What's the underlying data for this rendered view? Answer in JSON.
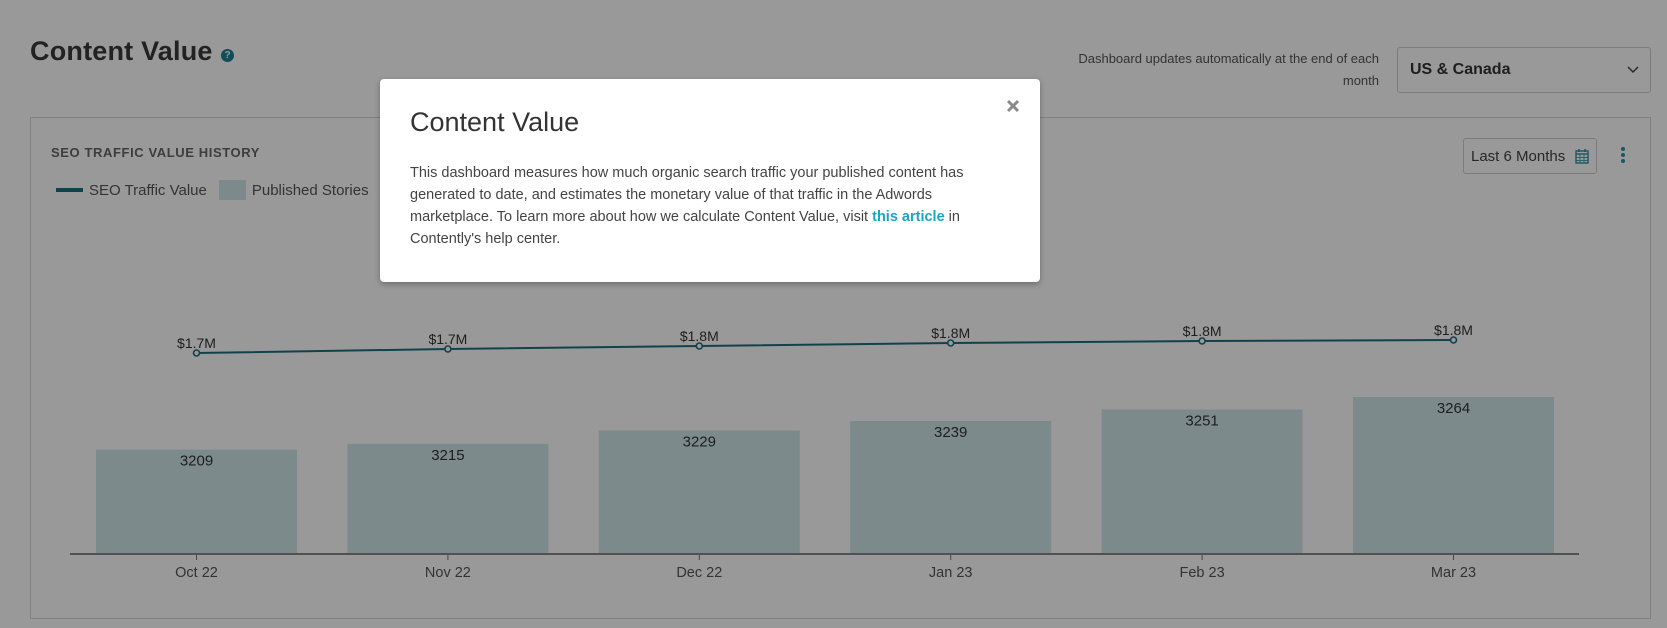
{
  "header": {
    "title": "Content Value",
    "help_icon": "question-circle-icon",
    "update_note": "Dashboard updates automatically at the end of each month",
    "region_select": {
      "value": "US & Canada",
      "icon": "chevron-down-icon"
    }
  },
  "card": {
    "title": "SEO TRAFFIC VALUE HISTORY",
    "legend": [
      {
        "label": "SEO Traffic Value",
        "type": "line",
        "color": "#1d6f7e"
      },
      {
        "label": "Published Stories",
        "type": "bar",
        "color": "#cfe7ea"
      }
    ],
    "date_range": {
      "label": "Last 6 Months",
      "icon": "calendar-icon"
    },
    "menu_icon": "kebab-menu-icon"
  },
  "chart_data": {
    "type": "bar",
    "title": "SEO TRAFFIC VALUE HISTORY",
    "categories": [
      "Oct 22",
      "Nov 22",
      "Dec 22",
      "Jan 23",
      "Feb 23",
      "Mar 23"
    ],
    "series": [
      {
        "name": "Published Stories",
        "type": "bar",
        "values": [
          3209,
          3215,
          3229,
          3239,
          3251,
          3264
        ],
        "labels": [
          "3209",
          "3215",
          "3229",
          "3239",
          "3251",
          "3264"
        ]
      },
      {
        "name": "SEO Traffic Value",
        "type": "line",
        "values": [
          1.7,
          1.7,
          1.8,
          1.8,
          1.8,
          1.8
        ],
        "labels": [
          "$1.7M",
          "$1.7M",
          "$1.8M",
          "$1.8M",
          "$1.8M",
          "$1.8M"
        ]
      }
    ],
    "xlabel": "",
    "ylabel": "",
    "grid": false,
    "legend_position": "top-left"
  },
  "modal": {
    "title": "Content Value",
    "body_before": "This dashboard measures how much organic search traffic your published content has generated to date, and estimates the monetary value of that traffic in the Adwords marketplace. To learn more about how we calculate Content Value, visit ",
    "link_text": "this article",
    "body_after": " in Contently's help center.",
    "close_icon": "close-icon"
  },
  "colors": {
    "accent": "#1d6f7e",
    "link": "#1aa6c0",
    "bar": "#cfe7ea"
  }
}
